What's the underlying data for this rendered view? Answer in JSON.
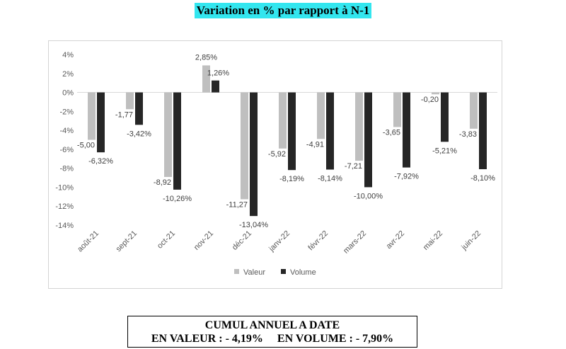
{
  "title": "Variation en % par rapport à N-1",
  "chart_data": {
    "type": "bar",
    "categories": [
      "août-21",
      "sept-21",
      "oct-21",
      "nov-21",
      "déc-21",
      "janv-22",
      "févr-22",
      "mars-22",
      "avr-22",
      "mai-22",
      "juin-22"
    ],
    "series": [
      {
        "name": "Valeur",
        "color": "#bfbfbf",
        "values": [
          -5.0,
          -1.77,
          -8.92,
          2.85,
          -11.27,
          -5.92,
          -4.91,
          -7.21,
          -3.65,
          -0.2,
          -3.83
        ],
        "labels": [
          "-5,00",
          "-1,77",
          "-8,92",
          "2,85%",
          "-11,27",
          "-5,92",
          "-4,91",
          "-7,21",
          "-3,65",
          "-0,20",
          "-3,83"
        ]
      },
      {
        "name": "Volume",
        "color": "#262626",
        "values": [
          -6.32,
          -3.42,
          -10.26,
          1.26,
          -13.04,
          -8.19,
          -8.14,
          -10.0,
          -7.92,
          -5.21,
          -8.1
        ],
        "labels": [
          "-6,32%",
          "-3,42%",
          "-10,26%",
          "1,26%",
          "-13,04%",
          "-8,19%",
          "-8,14%",
          "-10,00%",
          "-7,92%",
          "-5,21%",
          "-8,10%"
        ]
      }
    ],
    "yticks": [
      "4%",
      "2%",
      "0%",
      "-2%",
      "-4%",
      "-6%",
      "-8%",
      "-10%",
      "-12%",
      "-14%"
    ],
    "ylim": [
      -14,
      4
    ],
    "legend_position": "bottom"
  },
  "summary": {
    "line1": "CUMUL ANNUEL A DATE",
    "valeur": "EN VALEUR : - 4,19%",
    "volume": "EN VOLUME : - 7,90%"
  }
}
